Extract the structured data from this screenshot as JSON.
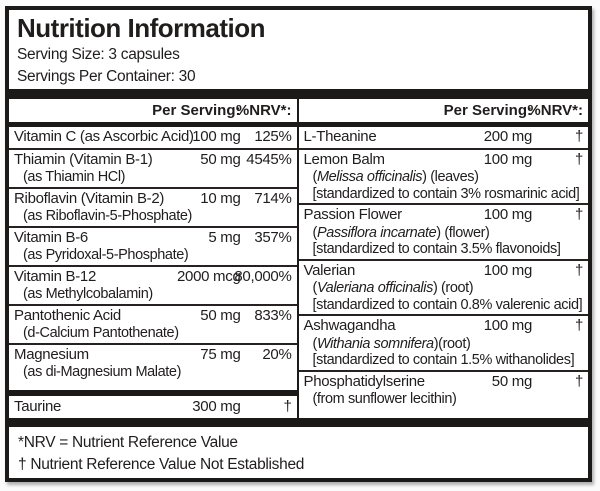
{
  "colors": {
    "ink": "#1c1919",
    "background": "#ffffff"
  },
  "header": {
    "title": "Nutrition Information",
    "serving_size": "Serving Size: 3 capsules",
    "servings_per_container": "Servings Per Container: 30"
  },
  "column_header": {
    "per_serving": "Per Serving:",
    "nrv": "%NRV*:"
  },
  "left_column": {
    "rows": [
      {
        "name": "Vitamin C (as Ascorbic Acid)",
        "amount": "100 mg",
        "nrv": "125%",
        "subs": []
      },
      {
        "name": "Thiamin (Vitamin B-1)",
        "amount": "50 mg",
        "nrv": "4545%",
        "subs": [
          {
            "text": "(as Thiamin HCl)"
          }
        ]
      },
      {
        "name": "Riboflavin (Vitamin B-2)",
        "amount": "10 mg",
        "nrv": "714%",
        "subs": [
          {
            "text": "(as Riboflavin-5-Phosphate)"
          }
        ]
      },
      {
        "name": "Vitamin B-6",
        "amount": "5 mg",
        "nrv": "357%",
        "subs": [
          {
            "text": "(as Pyridoxal-5-Phosphate)"
          }
        ]
      },
      {
        "name": "Vitamin B-12",
        "amount": "2000 mcg",
        "nrv": "80,000%",
        "subs": [
          {
            "text": "(as Methylcobalamin)"
          }
        ]
      },
      {
        "name": "Pantothenic Acid",
        "amount": "50 mg",
        "nrv": "833%",
        "subs": [
          {
            "text": "(d-Calcium Pantothenate)"
          }
        ]
      },
      {
        "name": "Magnesium",
        "amount": "75 mg",
        "nrv": "20%",
        "subs": [
          {
            "text": "(as di-Magnesium Malate)"
          }
        ],
        "extra_space_below": true
      },
      {
        "name": "Taurine",
        "amount": "300 mg",
        "nrv": "†",
        "subs": [],
        "thick_separator_before": true
      }
    ]
  },
  "right_column": {
    "rows": [
      {
        "name": "L-Theanine",
        "amount": "200 mg",
        "nrv": "†",
        "subs": []
      },
      {
        "name": "Lemon Balm",
        "amount": "100 mg",
        "nrv": "†",
        "subs": [
          {
            "pre": "(",
            "italic": "Melissa officinalis",
            "post": ") (leaves)"
          },
          {
            "text": "[standardized to contain 3% rosmarinic acid]"
          }
        ]
      },
      {
        "name": "Passion Flower",
        "amount": "100 mg",
        "nrv": "†",
        "subs": [
          {
            "pre": "(",
            "italic": "Passiflora incarnate",
            "post": ") (flower)"
          },
          {
            "text": "[standardized to contain 3.5% flavonoids]"
          }
        ]
      },
      {
        "name": "Valerian",
        "amount": "100 mg",
        "nrv": "†",
        "subs": [
          {
            "pre": "(",
            "italic": "Valeriana officinalis",
            "post": ") (root)"
          },
          {
            "text": "[standardized to contain 0.8% valerenic acid]"
          }
        ]
      },
      {
        "name": "Ashwagandha",
        "amount": "100 mg",
        "nrv": "†",
        "subs": [
          {
            "pre": "(",
            "italic": "Withania somnifera",
            "post": ")(root)"
          },
          {
            "text": "[standardized to contain 1.5% withanolides]"
          }
        ]
      },
      {
        "name": "Phosphatidylserine",
        "amount": "50 mg",
        "nrv": "†",
        "subs": [
          {
            "text": "(from sunflower lecithin)"
          }
        ]
      }
    ]
  },
  "footer": {
    "nrv_definition": "*NRV = Nutrient Reference Value",
    "dagger_definition": "† Nutrient Reference Value Not Established"
  }
}
